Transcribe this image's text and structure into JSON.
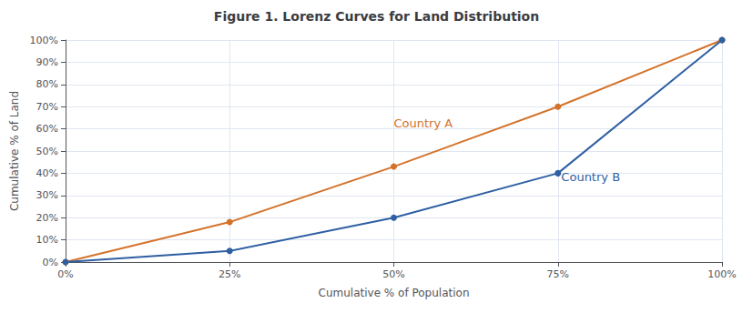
{
  "chart_data": {
    "type": "line",
    "title": "Figure 1. Lorenz Curves for Land Distribution",
    "xlabel": "Cumulative % of Population",
    "ylabel": "Cumulative % of Land",
    "x": [
      0,
      0.25,
      0.5,
      0.75,
      1.0
    ],
    "series": [
      {
        "name": "Country A",
        "color": "#D4722A",
        "marker": "circle",
        "values": [
          0,
          0.18,
          0.43,
          0.7,
          1.0
        ]
      },
      {
        "name": "Country B",
        "color": "#2E5FA3",
        "marker": "circle",
        "values": [
          0,
          0.05,
          0.2,
          0.4,
          1.0
        ]
      }
    ],
    "xlim": [
      0,
      1.0
    ],
    "ylim": [
      0,
      1.0
    ],
    "xticks": [
      {
        "value": 0,
        "label": "0%"
      },
      {
        "value": 0.25,
        "label": "25%"
      },
      {
        "value": 0.5,
        "label": "50%"
      },
      {
        "value": 0.75,
        "label": "75%"
      },
      {
        "value": 1.0,
        "label": "100%"
      }
    ],
    "yticks": [
      {
        "value": 0,
        "label": "0%"
      },
      {
        "value": 0.1,
        "label": "10%"
      },
      {
        "value": 0.2,
        "label": "20%"
      },
      {
        "value": 0.3,
        "label": "30%"
      },
      {
        "value": 0.4,
        "label": "40%"
      },
      {
        "value": 0.5,
        "label": "50%"
      },
      {
        "value": 0.6,
        "label": "60%"
      },
      {
        "value": 0.7,
        "label": "70%"
      },
      {
        "value": 0.8,
        "label": "80%"
      },
      {
        "value": 0.9,
        "label": "90%"
      },
      {
        "value": 1.0,
        "label": "100%"
      }
    ],
    "grid": true
  }
}
